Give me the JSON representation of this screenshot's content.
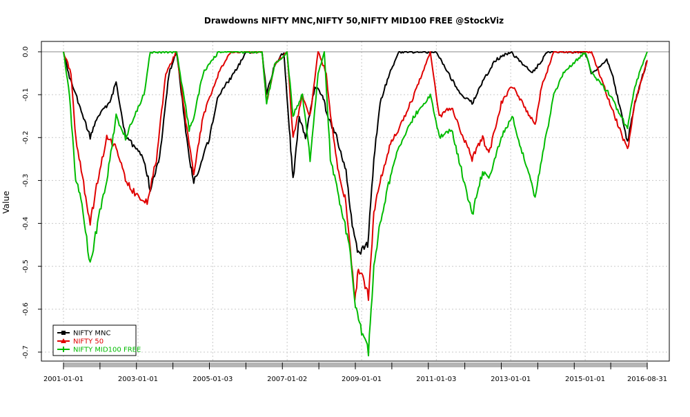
{
  "chart_data": {
    "type": "line",
    "title": "Drawdowns NIFTY MNC,NIFTY 50,NIFTY MID100 FREE @StockViz",
    "xlabel": "",
    "ylabel": "Value",
    "ylim": [
      -0.7,
      0.0
    ],
    "y_axis_inverted": true,
    "x_axis_type": "date",
    "x_range": [
      "2001-01-01",
      "2016-08-31"
    ],
    "x_tick_labels": [
      "2001-01-01",
      "2003-01-01",
      "2005-01-03",
      "2007-01-02",
      "2009-01-01",
      "2011-01-03",
      "2013-01-01",
      "2015-01-01",
      "2016-08-31"
    ],
    "y_tick_labels": [
      "0.0",
      "-0.1",
      "-0.2",
      "-0.3",
      "-0.4",
      "-0.5",
      "-0.6",
      "-0.7"
    ],
    "y_ticks": [
      0.0,
      -0.1,
      -0.2,
      -0.3,
      -0.4,
      -0.5,
      -0.6,
      -0.7
    ],
    "grid": true,
    "legend_position": "bottom-left",
    "series": [
      {
        "name": "NIFTY MNC",
        "color": "#000000",
        "points": [
          [
            "2001-01-01",
            0.0
          ],
          [
            "2001-03-01",
            -0.06
          ],
          [
            "2001-05-01",
            -0.1
          ],
          [
            "2001-09-20",
            -0.2
          ],
          [
            "2001-12-01",
            -0.15
          ],
          [
            "2002-04-01",
            -0.12
          ],
          [
            "2002-06-01",
            -0.07
          ],
          [
            "2002-09-01",
            -0.2
          ],
          [
            "2002-12-01",
            -0.22
          ],
          [
            "2003-03-01",
            -0.25
          ],
          [
            "2003-05-01",
            -0.32
          ],
          [
            "2003-08-01",
            -0.25
          ],
          [
            "2003-11-01",
            -0.05
          ],
          [
            "2004-01-15",
            0.0
          ],
          [
            "2004-05-17",
            -0.25
          ],
          [
            "2004-07-01",
            -0.3
          ],
          [
            "2004-09-01",
            -0.27
          ],
          [
            "2004-12-01",
            -0.2
          ],
          [
            "2005-03-01",
            -0.1
          ],
          [
            "2005-08-01",
            -0.05
          ],
          [
            "2005-12-01",
            0.0
          ],
          [
            "2006-05-01",
            0.0
          ],
          [
            "2006-06-15",
            -0.1
          ],
          [
            "2006-09-01",
            -0.03
          ],
          [
            "2006-12-01",
            0.0
          ],
          [
            "2007-01-15",
            -0.15
          ],
          [
            "2007-03-01",
            -0.3
          ],
          [
            "2007-05-01",
            -0.15
          ],
          [
            "2007-07-01",
            -0.2
          ],
          [
            "2007-10-01",
            -0.08
          ],
          [
            "2007-12-15",
            -0.1
          ],
          [
            "2008-02-01",
            -0.15
          ],
          [
            "2008-05-01",
            -0.2
          ],
          [
            "2008-08-01",
            -0.28
          ],
          [
            "2008-10-01",
            -0.4
          ],
          [
            "2008-12-01",
            -0.47
          ],
          [
            "2009-03-01",
            -0.45
          ],
          [
            "2009-05-01",
            -0.25
          ],
          [
            "2009-07-01",
            -0.12
          ],
          [
            "2009-10-01",
            -0.05
          ],
          [
            "2010-01-01",
            0.0
          ],
          [
            "2010-06-01",
            0.0
          ],
          [
            "2011-01-01",
            0.0
          ],
          [
            "2011-05-01",
            -0.05
          ],
          [
            "2011-09-01",
            -0.1
          ],
          [
            "2011-12-20",
            -0.12
          ],
          [
            "2012-04-01",
            -0.07
          ],
          [
            "2012-08-01",
            -0.02
          ],
          [
            "2013-01-01",
            0.0
          ],
          [
            "2013-08-01",
            -0.05
          ],
          [
            "2014-01-01",
            0.0
          ],
          [
            "2015-01-01",
            0.0
          ],
          [
            "2015-03-01",
            -0.05
          ],
          [
            "2015-08-01",
            -0.02
          ],
          [
            "2015-10-01",
            -0.06
          ],
          [
            "2016-02-20",
            -0.21
          ],
          [
            "2016-05-01",
            -0.12
          ],
          [
            "2016-08-31",
            -0.02
          ]
        ]
      },
      {
        "name": "NIFTY 50",
        "color": "#e00000",
        "points": [
          [
            "2001-01-01",
            0.0
          ],
          [
            "2001-03-15",
            -0.05
          ],
          [
            "2001-05-01",
            -0.2
          ],
          [
            "2001-09-20",
            -0.4
          ],
          [
            "2001-12-01",
            -0.3
          ],
          [
            "2002-03-01",
            -0.2
          ],
          [
            "2002-06-01",
            -0.22
          ],
          [
            "2002-09-01",
            -0.3
          ],
          [
            "2002-12-01",
            -0.33
          ],
          [
            "2003-04-01",
            -0.35
          ],
          [
            "2003-07-01",
            -0.25
          ],
          [
            "2003-10-01",
            -0.05
          ],
          [
            "2004-01-15",
            0.0
          ],
          [
            "2004-05-17",
            -0.22
          ],
          [
            "2004-07-01",
            -0.28
          ],
          [
            "2004-10-01",
            -0.15
          ],
          [
            "2005-03-01",
            -0.05
          ],
          [
            "2005-07-01",
            0.0
          ],
          [
            "2006-05-01",
            0.0
          ],
          [
            "2006-06-15",
            -0.12
          ],
          [
            "2006-09-01",
            -0.03
          ],
          [
            "2007-01-01",
            0.0
          ],
          [
            "2007-03-01",
            -0.2
          ],
          [
            "2007-06-01",
            -0.1
          ],
          [
            "2007-08-15",
            -0.15
          ],
          [
            "2007-11-01",
            0.0
          ],
          [
            "2008-01-21",
            -0.05
          ],
          [
            "2008-03-01",
            -0.15
          ],
          [
            "2008-06-01",
            -0.3
          ],
          [
            "2008-08-01",
            -0.35
          ],
          [
            "2008-10-27",
            -0.58
          ],
          [
            "2008-12-01",
            -0.5
          ],
          [
            "2009-03-09",
            -0.57
          ],
          [
            "2009-05-01",
            -0.38
          ],
          [
            "2009-07-01",
            -0.3
          ],
          [
            "2009-10-01",
            -0.22
          ],
          [
            "2010-01-01",
            -0.18
          ],
          [
            "2010-06-01",
            -0.1
          ],
          [
            "2010-11-05",
            0.0
          ],
          [
            "2011-02-01",
            -0.15
          ],
          [
            "2011-06-01",
            -0.13
          ],
          [
            "2011-12-20",
            -0.25
          ],
          [
            "2012-04-01",
            -0.2
          ],
          [
            "2012-06-01",
            -0.24
          ],
          [
            "2012-10-01",
            -0.12
          ],
          [
            "2013-01-15",
            -0.08
          ],
          [
            "2013-08-28",
            -0.17
          ],
          [
            "2013-11-01",
            -0.08
          ],
          [
            "2014-03-01",
            0.0
          ],
          [
            "2015-01-01",
            0.0
          ],
          [
            "2015-03-04",
            0.0
          ],
          [
            "2015-09-01",
            -0.12
          ],
          [
            "2016-02-20",
            -0.23
          ],
          [
            "2016-05-01",
            -0.12
          ],
          [
            "2016-08-31",
            -0.02
          ]
        ]
      },
      {
        "name": "NIFTY MID100 FREE",
        "color": "#00bb00",
        "points": [
          [
            "2001-01-01",
            0.0
          ],
          [
            "2001-03-01",
            -0.1
          ],
          [
            "2001-05-01",
            -0.3
          ],
          [
            "2001-07-01",
            -0.35
          ],
          [
            "2001-09-20",
            -0.5
          ],
          [
            "2001-12-01",
            -0.4
          ],
          [
            "2002-03-01",
            -0.3
          ],
          [
            "2002-06-01",
            -0.15
          ],
          [
            "2002-09-01",
            -0.2
          ],
          [
            "2002-12-01",
            -0.15
          ],
          [
            "2003-03-01",
            -0.1
          ],
          [
            "2003-05-01",
            0.0
          ],
          [
            "2004-01-15",
            0.0
          ],
          [
            "2004-05-17",
            -0.18
          ],
          [
            "2004-07-01",
            -0.15
          ],
          [
            "2004-10-01",
            -0.05
          ],
          [
            "2005-03-01",
            0.0
          ],
          [
            "2006-05-01",
            0.0
          ],
          [
            "2006-06-15",
            -0.12
          ],
          [
            "2006-09-01",
            -0.03
          ],
          [
            "2007-01-01",
            0.0
          ],
          [
            "2007-03-01",
            -0.15
          ],
          [
            "2007-06-01",
            -0.1
          ],
          [
            "2007-08-15",
            -0.25
          ],
          [
            "2007-11-01",
            -0.05
          ],
          [
            "2008-01-01",
            0.0
          ],
          [
            "2008-03-01",
            -0.25
          ],
          [
            "2008-06-01",
            -0.35
          ],
          [
            "2008-09-01",
            -0.45
          ],
          [
            "2008-11-01",
            -0.6
          ],
          [
            "2009-01-01",
            -0.65
          ],
          [
            "2009-03-09",
            -0.7
          ],
          [
            "2009-05-01",
            -0.5
          ],
          [
            "2009-07-01",
            -0.4
          ],
          [
            "2009-10-01",
            -0.3
          ],
          [
            "2010-01-01",
            -0.22
          ],
          [
            "2010-06-01",
            -0.15
          ],
          [
            "2010-11-05",
            -0.1
          ],
          [
            "2011-02-01",
            -0.2
          ],
          [
            "2011-06-01",
            -0.18
          ],
          [
            "2011-12-20",
            -0.38
          ],
          [
            "2012-04-01",
            -0.28
          ],
          [
            "2012-06-01",
            -0.3
          ],
          [
            "2012-10-01",
            -0.2
          ],
          [
            "2013-01-15",
            -0.15
          ],
          [
            "2013-08-28",
            -0.34
          ],
          [
            "2013-11-01",
            -0.25
          ],
          [
            "2014-03-01",
            -0.1
          ],
          [
            "2014-06-01",
            -0.05
          ],
          [
            "2015-01-01",
            0.0
          ],
          [
            "2015-03-04",
            -0.05
          ],
          [
            "2015-09-01",
            -0.1
          ],
          [
            "2016-02-20",
            -0.18
          ],
          [
            "2016-05-01",
            -0.08
          ],
          [
            "2016-08-31",
            0.0
          ]
        ]
      }
    ]
  }
}
